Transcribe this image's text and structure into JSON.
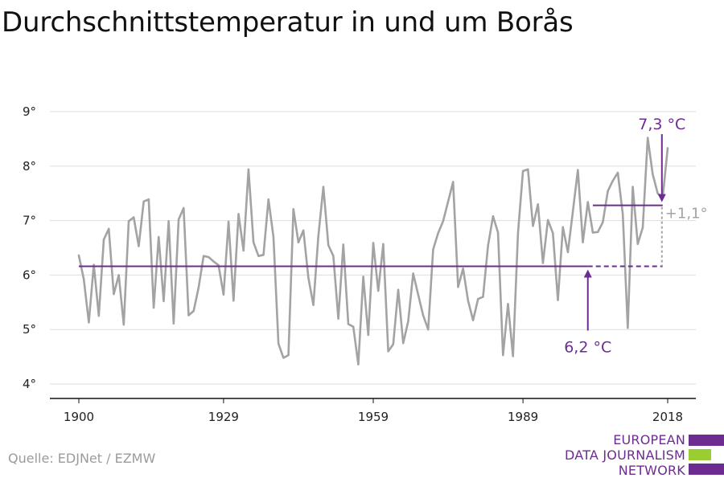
{
  "title": "Durchschnittstemperatur in und um Borås",
  "source": "Quelle: EDJNet / EZMW",
  "logo": {
    "lines": [
      "EUROPEAN",
      "DATA JOURNALISM",
      "NETWORK"
    ],
    "colors": {
      "purple": "#6d2c91",
      "green": "#9acd32"
    }
  },
  "colors": {
    "series": "#a3a3a3",
    "accent": "#6d2c91",
    "delta": "#a3a3a3",
    "grid": "#dddddd",
    "axis": "#111111"
  },
  "chart_data": {
    "type": "line",
    "title": "Durchschnittstemperatur in und um Borås",
    "xlabel": "",
    "ylabel": "",
    "xlim": [
      1900,
      2018
    ],
    "ylim": [
      4,
      9
    ],
    "grid": true,
    "x_ticks": [
      1900,
      1929,
      1959,
      1989,
      2018
    ],
    "y_ticks": [
      {
        "value": 4,
        "label": "4°"
      },
      {
        "value": 5,
        "label": "5°"
      },
      {
        "value": 6,
        "label": "6°"
      },
      {
        "value": 7,
        "label": "7°"
      },
      {
        "value": 8,
        "label": "8°"
      },
      {
        "value": 9,
        "label": "9°"
      }
    ],
    "series": [
      {
        "x_start": 1900,
        "x_step": 1,
        "values": [
          6.36,
          5.92,
          5.13,
          6.19,
          5.25,
          6.65,
          6.85,
          5.65,
          6.0,
          5.09,
          6.99,
          7.06,
          6.53,
          7.35,
          7.39,
          5.4,
          6.7,
          5.52,
          6.99,
          5.11,
          7.02,
          7.23,
          5.26,
          5.34,
          5.77,
          6.35,
          6.33,
          6.25,
          6.18,
          5.64,
          6.98,
          5.53,
          7.12,
          6.45,
          7.94,
          6.6,
          6.35,
          6.37,
          7.39,
          6.7,
          4.74,
          4.48,
          4.53,
          7.21,
          6.6,
          6.82,
          5.95,
          5.45,
          6.72,
          7.62,
          6.55,
          6.35,
          5.2,
          6.56,
          5.1,
          5.05,
          4.36,
          5.97,
          4.9,
          6.59,
          5.71,
          6.57,
          4.6,
          4.73,
          5.73,
          4.75,
          5.15,
          6.03,
          5.64,
          5.26,
          5.0,
          6.47,
          6.77,
          6.99,
          7.35,
          7.71,
          5.78,
          6.12,
          5.53,
          5.17,
          5.56,
          5.6,
          6.54,
          7.08,
          6.78,
          4.53,
          5.47,
          4.51,
          6.77,
          7.91,
          7.94,
          6.9,
          7.3,
          6.22,
          7.01,
          6.77,
          5.54,
          6.88,
          6.42,
          7.17,
          7.93,
          6.6,
          7.34,
          6.78,
          6.79,
          6.97,
          7.54,
          7.73,
          7.88,
          7.12,
          5.03,
          7.62,
          6.57,
          6.87,
          8.52,
          7.85,
          7.5,
          7.42,
          8.33
        ]
      }
    ],
    "annotations": {
      "baseline": {
        "value": 6.16,
        "label": "6,2 °C",
        "from": 1900,
        "solid_to": 2002,
        "dashed_to": 2017,
        "label_year": 2002,
        "label_value": 4.98
      },
      "recent": {
        "value": 7.28,
        "label": "7,3 °C",
        "from": 2003,
        "to": 2017,
        "label_year": 2017,
        "label_value": 9.0
      },
      "delta": {
        "label": "+1,1°",
        "year": 2017
      }
    }
  }
}
